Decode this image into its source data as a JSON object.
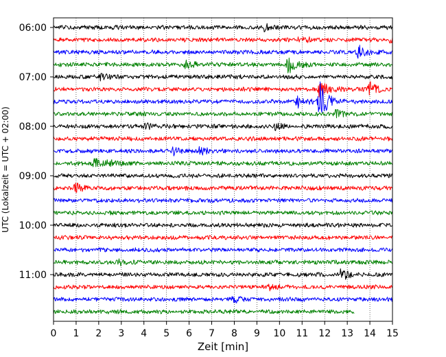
{
  "chart_data": {
    "type": "line",
    "title": "",
    "xlabel": "Zeit  [min]",
    "ylabel": "UTC (Lokalzeit = UTC + 02:00)",
    "xlim": [
      0,
      15
    ],
    "x_ticks": [
      0,
      1,
      2,
      3,
      4,
      5,
      6,
      7,
      8,
      9,
      10,
      11,
      12,
      13,
      14,
      15
    ],
    "x_tick_labels": [
      "0",
      "1",
      "2",
      "3",
      "4",
      "5",
      "6",
      "7",
      "8",
      "9",
      "10",
      "11",
      "12",
      "13",
      "14",
      "15"
    ],
    "y_ticks": [
      {
        "row": 0,
        "label": "06:00"
      },
      {
        "row": 4,
        "label": "07:00"
      },
      {
        "row": 8,
        "label": "08:00"
      },
      {
        "row": 12,
        "label": "09:00"
      },
      {
        "row": 16,
        "label": "10:00"
      },
      {
        "row": 20,
        "label": "11:00"
      }
    ],
    "grid": "vertical dotted",
    "colors": [
      "#000000",
      "#ff0000",
      "#0000ff",
      "#008000"
    ],
    "rows": [
      {
        "start": "06:00",
        "color": "#000000",
        "end_min": 15,
        "events": [
          {
            "t": 9.3,
            "a": 4
          }
        ]
      },
      {
        "start": "06:15",
        "color": "#ff0000",
        "end_min": 15,
        "events": [
          {
            "t": 10.9,
            "a": 6
          },
          {
            "t": 14.9,
            "a": 6
          }
        ]
      },
      {
        "start": "06:30",
        "color": "#0000ff",
        "end_min": 15,
        "events": [
          {
            "t": 13.5,
            "a": 9
          }
        ]
      },
      {
        "start": "06:45",
        "color": "#008000",
        "end_min": 15,
        "events": [
          {
            "t": 5.9,
            "a": 6
          },
          {
            "t": 10.4,
            "a": 12
          }
        ]
      },
      {
        "start": "07:00",
        "color": "#000000",
        "end_min": 15,
        "events": [
          {
            "t": 2.1,
            "a": 4
          }
        ]
      },
      {
        "start": "07:15",
        "color": "#ff0000",
        "end_min": 15,
        "events": [
          {
            "t": 11.8,
            "a": 13
          },
          {
            "t": 14.0,
            "a": 9
          }
        ]
      },
      {
        "start": "07:30",
        "color": "#0000ff",
        "end_min": 15,
        "events": [
          {
            "t": 11.8,
            "a": 26
          },
          {
            "t": 10.8,
            "a": 8
          }
        ]
      },
      {
        "start": "07:45",
        "color": "#008000",
        "end_min": 15,
        "events": [
          {
            "t": 12.5,
            "a": 5
          }
        ]
      },
      {
        "start": "08:00",
        "color": "#000000",
        "end_min": 15,
        "events": [
          {
            "t": 4.1,
            "a": 4
          },
          {
            "t": 9.8,
            "a": 4
          }
        ]
      },
      {
        "start": "08:15",
        "color": "#ff0000",
        "end_min": 15,
        "events": []
      },
      {
        "start": "08:30",
        "color": "#0000ff",
        "end_min": 15,
        "events": [
          {
            "t": 5.3,
            "a": 5
          },
          {
            "t": 6.5,
            "a": 5
          }
        ]
      },
      {
        "start": "08:45",
        "color": "#008000",
        "end_min": 15,
        "events": [
          {
            "t": 1.8,
            "a": 6
          },
          {
            "t": 2.4,
            "a": 5
          }
        ]
      },
      {
        "start": "09:00",
        "color": "#000000",
        "end_min": 15,
        "events": []
      },
      {
        "start": "09:15",
        "color": "#ff0000",
        "end_min": 15,
        "events": [
          {
            "t": 1.0,
            "a": 7
          }
        ]
      },
      {
        "start": "09:30",
        "color": "#0000ff",
        "end_min": 15,
        "events": []
      },
      {
        "start": "09:45",
        "color": "#008000",
        "end_min": 15,
        "events": []
      },
      {
        "start": "10:00",
        "color": "#000000",
        "end_min": 15,
        "events": []
      },
      {
        "start": "10:15",
        "color": "#ff0000",
        "end_min": 15,
        "events": []
      },
      {
        "start": "10:30",
        "color": "#0000ff",
        "end_min": 15,
        "events": []
      },
      {
        "start": "10:45",
        "color": "#008000",
        "end_min": 15,
        "events": [
          {
            "t": 2.9,
            "a": 4
          }
        ]
      },
      {
        "start": "11:00",
        "color": "#000000",
        "end_min": 15,
        "events": [
          {
            "t": 12.7,
            "a": 9
          }
        ]
      },
      {
        "start": "11:15",
        "color": "#ff0000",
        "end_min": 15,
        "events": [
          {
            "t": 9.5,
            "a": 4
          }
        ]
      },
      {
        "start": "11:30",
        "color": "#0000ff",
        "end_min": 15,
        "events": [
          {
            "t": 8.0,
            "a": 4
          }
        ]
      },
      {
        "start": "11:45",
        "color": "#008000",
        "end_min": 13.3,
        "events": []
      }
    ]
  }
}
